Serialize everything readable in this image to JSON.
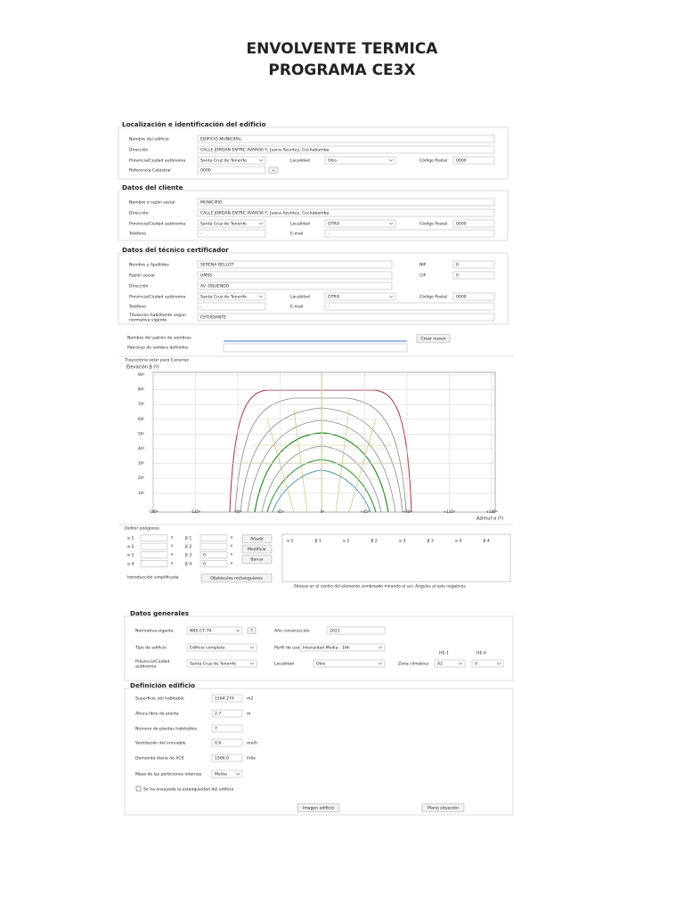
{
  "header": {
    "line1": "ENVOLVENTE TERMICA",
    "line2": "PROGRAMA CE3X"
  },
  "localizacion": {
    "title": "Localización e identificación del edificio",
    "rows": [
      [
        {
          "label": "Nombre del edificio",
          "value": "EDIFICIO MUNICIPAL"
        }
      ],
      [
        {
          "label": "Dirección",
          "value": "CALLE JORDAN ENTRE AVAROA Y, Juana Azurduy, Cochabamba"
        }
      ],
      [
        {
          "label": "Provincia/Ciudad autónoma",
          "value": "Santa Cruz de Tenerife"
        },
        {
          "label": "Localidad",
          "value": "Otro"
        },
        {
          "label": "Código Postal",
          "value": "0000"
        }
      ],
      [
        {
          "label": "Referencia Catastral",
          "value": "0000",
          "button": "+"
        }
      ]
    ]
  },
  "cliente": {
    "title": "Datos del cliente",
    "rows": [
      [
        {
          "label": "Nombre o razón social",
          "value": "MUNICIPIO"
        }
      ],
      [
        {
          "label": "Dirección",
          "value": "CALLE JORDAN ENTRE AVAROA Y, Juana Azurduy, Cochabamba"
        }
      ],
      [
        {
          "label": "Provincia/Ciudad autónoma",
          "value": "Santa Cruz de Tenerife"
        },
        {
          "label": "Localidad",
          "value": "OTRO"
        },
        {
          "label": "Código Postal",
          "value": "0000"
        }
      ],
      [
        {
          "label": "Teléfono",
          "value": "-"
        },
        {
          "label": "E-mail",
          "value": "-"
        }
      ]
    ]
  },
  "tecnico": {
    "title": "Datos del técnico certificador",
    "rows": [
      [
        {
          "label": "Nombre y Apellidos",
          "value": "SERENA BELLOT"
        },
        {
          "label": "NIF",
          "value": "0"
        }
      ],
      [
        {
          "label": "Razón social",
          "value": "UMSS"
        },
        {
          "label": "CIF",
          "value": "0"
        }
      ],
      [
        {
          "label": "Dirección",
          "value": "AV. OQUENDO"
        }
      ],
      [
        {
          "label": "Provincia/Ciudad autónoma",
          "value": "Santa Cruz de Tenerife"
        },
        {
          "label": "Localidad",
          "value": "OTRO"
        },
        {
          "label": "Código Postal",
          "value": "0000"
        }
      ],
      [
        {
          "label": "Teléfono",
          "value": "-"
        },
        {
          "label": "E-mail",
          "value": "-"
        }
      ],
      [
        {
          "label": [
            "Titulación habilitante según",
            "normativa vigente"
          ],
          "value": "ESTUDIANTE"
        }
      ]
    ]
  },
  "sombras": {
    "pattern_name": "Nombre del patrón de sombras",
    "create": "Crear nuevo",
    "defined": "Patrones de sombra definidos"
  },
  "trayectoria": {
    "title": "Trayectoria solar para Canarias",
    "y_title": "Elevación β (º)",
    "x_title": "Azimut α (º)",
    "y_labels": [
      "90º",
      "80º",
      "70º",
      "60º",
      "50º",
      "40º",
      "30º",
      "20º",
      "10º"
    ],
    "x_labels": [
      "-180º",
      "-135º",
      "-90º",
      "-45º",
      "0º",
      "+45º",
      "+90º",
      "+135º",
      "+180º"
    ]
  },
  "poligonos": {
    "title": "Definir polígonos",
    "unit": "º",
    "rows": [
      {
        "alpha": "α 1",
        "beta": "β 1"
      },
      {
        "alpha": "α 2",
        "beta": "β 2"
      },
      {
        "alpha": "α 3",
        "beta": "β 3",
        "beta_value": "0"
      },
      {
        "alpha": "α 4",
        "beta": "β 4",
        "beta_value": "0"
      }
    ],
    "buttons": [
      "Añadir",
      "Modificar",
      "Borrar"
    ],
    "table_headers": [
      "α 1",
      "β 1",
      "α 2",
      "β 2",
      "α 3",
      "β 3",
      "α 4",
      "β 4"
    ],
    "simplified": "Introducción simplificada",
    "obstacles": "Obstáculos rectangulares",
    "note": "Sitúese en el centro del elemento sombreado mirando al sur; Ángulos al este negativos"
  },
  "generales": {
    "title": "Datos generales",
    "rows": [
      [
        {
          "label": "Normativa vigente",
          "value": "NBE-CT-79",
          "help": "?"
        },
        {
          "label": "Año construcción",
          "value": "2021"
        }
      ],
      [
        {
          "label": "Tipo de edificio",
          "value": "Edificio completo"
        },
        {
          "label": "Perfil de uso",
          "value": "Intensidad Media - 16h"
        }
      ],
      [
        {
          "label": [
            "Provincia/Ciudad",
            "autónoma"
          ],
          "value": "Santa Cruz de Tenerife"
        },
        {
          "label": "Localidad",
          "value": "Otro"
        },
        {
          "label": "Zona climática",
          "he1": "HE-1",
          "he1_value": "A2",
          "he4": "HE-4",
          "he4_value": "V"
        }
      ]
    ]
  },
  "definicion": {
    "title": "Definición edificio",
    "rows": [
      {
        "label": "Superficie útil habitable",
        "value": "1164.274",
        "unit": "m2"
      },
      {
        "label": "Altura libre de planta",
        "value": "2.7",
        "unit": "m"
      },
      {
        "label": "Número de plantas habitables",
        "value": "7"
      },
      {
        "label": "Ventilación del inmueble",
        "value": "0.6",
        "unit": "ren/h"
      },
      {
        "label": "Demanda diaria de ACS",
        "value": "1566.0",
        "unit": "l/día"
      },
      {
        "label": "Masa de las particiones internas",
        "value": "Media"
      }
    ],
    "checkbox": "Se ha ensayado la estanqueidad del edificio",
    "buttons": [
      "Imagen edificio",
      "Plano situación"
    ]
  }
}
